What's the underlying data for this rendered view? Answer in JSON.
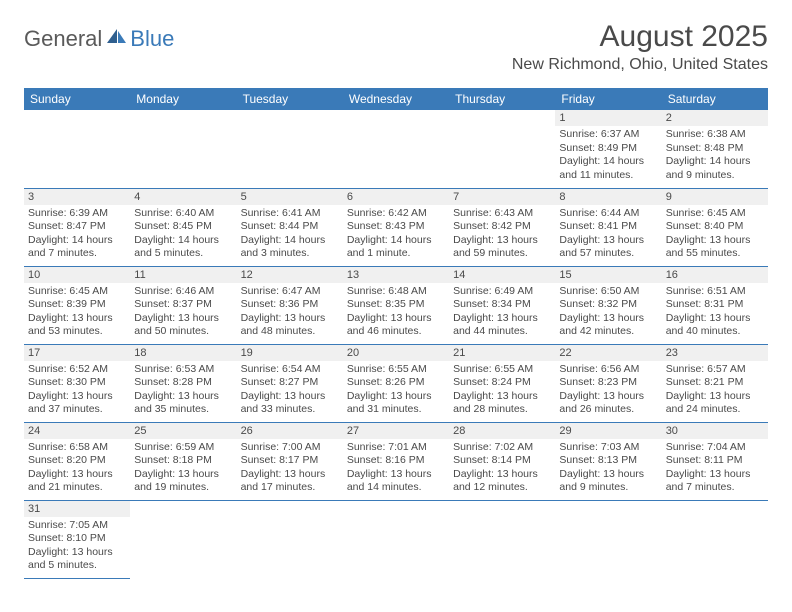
{
  "logo": {
    "text1": "General",
    "text2": "Blue"
  },
  "title": "August 2025",
  "location": "New Richmond, Ohio, United States",
  "colors": {
    "header_bg": "#3a7ab8",
    "header_text": "#ffffff",
    "text": "#4a4a4a",
    "daynum_bg": "#f0f0f0",
    "border": "#3a7ab8",
    "logo_blue": "#3a7ab8"
  },
  "weekdays": [
    "Sunday",
    "Monday",
    "Tuesday",
    "Wednesday",
    "Thursday",
    "Friday",
    "Saturday"
  ],
  "weeks": [
    [
      null,
      null,
      null,
      null,
      null,
      {
        "n": "1",
        "sr": "Sunrise: 6:37 AM",
        "ss": "Sunset: 8:49 PM",
        "dl1": "Daylight: 14 hours",
        "dl2": "and 11 minutes."
      },
      {
        "n": "2",
        "sr": "Sunrise: 6:38 AM",
        "ss": "Sunset: 8:48 PM",
        "dl1": "Daylight: 14 hours",
        "dl2": "and 9 minutes."
      }
    ],
    [
      {
        "n": "3",
        "sr": "Sunrise: 6:39 AM",
        "ss": "Sunset: 8:47 PM",
        "dl1": "Daylight: 14 hours",
        "dl2": "and 7 minutes."
      },
      {
        "n": "4",
        "sr": "Sunrise: 6:40 AM",
        "ss": "Sunset: 8:45 PM",
        "dl1": "Daylight: 14 hours",
        "dl2": "and 5 minutes."
      },
      {
        "n": "5",
        "sr": "Sunrise: 6:41 AM",
        "ss": "Sunset: 8:44 PM",
        "dl1": "Daylight: 14 hours",
        "dl2": "and 3 minutes."
      },
      {
        "n": "6",
        "sr": "Sunrise: 6:42 AM",
        "ss": "Sunset: 8:43 PM",
        "dl1": "Daylight: 14 hours",
        "dl2": "and 1 minute."
      },
      {
        "n": "7",
        "sr": "Sunrise: 6:43 AM",
        "ss": "Sunset: 8:42 PM",
        "dl1": "Daylight: 13 hours",
        "dl2": "and 59 minutes."
      },
      {
        "n": "8",
        "sr": "Sunrise: 6:44 AM",
        "ss": "Sunset: 8:41 PM",
        "dl1": "Daylight: 13 hours",
        "dl2": "and 57 minutes."
      },
      {
        "n": "9",
        "sr": "Sunrise: 6:45 AM",
        "ss": "Sunset: 8:40 PM",
        "dl1": "Daylight: 13 hours",
        "dl2": "and 55 minutes."
      }
    ],
    [
      {
        "n": "10",
        "sr": "Sunrise: 6:45 AM",
        "ss": "Sunset: 8:39 PM",
        "dl1": "Daylight: 13 hours",
        "dl2": "and 53 minutes."
      },
      {
        "n": "11",
        "sr": "Sunrise: 6:46 AM",
        "ss": "Sunset: 8:37 PM",
        "dl1": "Daylight: 13 hours",
        "dl2": "and 50 minutes."
      },
      {
        "n": "12",
        "sr": "Sunrise: 6:47 AM",
        "ss": "Sunset: 8:36 PM",
        "dl1": "Daylight: 13 hours",
        "dl2": "and 48 minutes."
      },
      {
        "n": "13",
        "sr": "Sunrise: 6:48 AM",
        "ss": "Sunset: 8:35 PM",
        "dl1": "Daylight: 13 hours",
        "dl2": "and 46 minutes."
      },
      {
        "n": "14",
        "sr": "Sunrise: 6:49 AM",
        "ss": "Sunset: 8:34 PM",
        "dl1": "Daylight: 13 hours",
        "dl2": "and 44 minutes."
      },
      {
        "n": "15",
        "sr": "Sunrise: 6:50 AM",
        "ss": "Sunset: 8:32 PM",
        "dl1": "Daylight: 13 hours",
        "dl2": "and 42 minutes."
      },
      {
        "n": "16",
        "sr": "Sunrise: 6:51 AM",
        "ss": "Sunset: 8:31 PM",
        "dl1": "Daylight: 13 hours",
        "dl2": "and 40 minutes."
      }
    ],
    [
      {
        "n": "17",
        "sr": "Sunrise: 6:52 AM",
        "ss": "Sunset: 8:30 PM",
        "dl1": "Daylight: 13 hours",
        "dl2": "and 37 minutes."
      },
      {
        "n": "18",
        "sr": "Sunrise: 6:53 AM",
        "ss": "Sunset: 8:28 PM",
        "dl1": "Daylight: 13 hours",
        "dl2": "and 35 minutes."
      },
      {
        "n": "19",
        "sr": "Sunrise: 6:54 AM",
        "ss": "Sunset: 8:27 PM",
        "dl1": "Daylight: 13 hours",
        "dl2": "and 33 minutes."
      },
      {
        "n": "20",
        "sr": "Sunrise: 6:55 AM",
        "ss": "Sunset: 8:26 PM",
        "dl1": "Daylight: 13 hours",
        "dl2": "and 31 minutes."
      },
      {
        "n": "21",
        "sr": "Sunrise: 6:55 AM",
        "ss": "Sunset: 8:24 PM",
        "dl1": "Daylight: 13 hours",
        "dl2": "and 28 minutes."
      },
      {
        "n": "22",
        "sr": "Sunrise: 6:56 AM",
        "ss": "Sunset: 8:23 PM",
        "dl1": "Daylight: 13 hours",
        "dl2": "and 26 minutes."
      },
      {
        "n": "23",
        "sr": "Sunrise: 6:57 AM",
        "ss": "Sunset: 8:21 PM",
        "dl1": "Daylight: 13 hours",
        "dl2": "and 24 minutes."
      }
    ],
    [
      {
        "n": "24",
        "sr": "Sunrise: 6:58 AM",
        "ss": "Sunset: 8:20 PM",
        "dl1": "Daylight: 13 hours",
        "dl2": "and 21 minutes."
      },
      {
        "n": "25",
        "sr": "Sunrise: 6:59 AM",
        "ss": "Sunset: 8:18 PM",
        "dl1": "Daylight: 13 hours",
        "dl2": "and 19 minutes."
      },
      {
        "n": "26",
        "sr": "Sunrise: 7:00 AM",
        "ss": "Sunset: 8:17 PM",
        "dl1": "Daylight: 13 hours",
        "dl2": "and 17 minutes."
      },
      {
        "n": "27",
        "sr": "Sunrise: 7:01 AM",
        "ss": "Sunset: 8:16 PM",
        "dl1": "Daylight: 13 hours",
        "dl2": "and 14 minutes."
      },
      {
        "n": "28",
        "sr": "Sunrise: 7:02 AM",
        "ss": "Sunset: 8:14 PM",
        "dl1": "Daylight: 13 hours",
        "dl2": "and 12 minutes."
      },
      {
        "n": "29",
        "sr": "Sunrise: 7:03 AM",
        "ss": "Sunset: 8:13 PM",
        "dl1": "Daylight: 13 hours",
        "dl2": "and 9 minutes."
      },
      {
        "n": "30",
        "sr": "Sunrise: 7:04 AM",
        "ss": "Sunset: 8:11 PM",
        "dl1": "Daylight: 13 hours",
        "dl2": "and 7 minutes."
      }
    ],
    [
      {
        "n": "31",
        "sr": "Sunrise: 7:05 AM",
        "ss": "Sunset: 8:10 PM",
        "dl1": "Daylight: 13 hours",
        "dl2": "and 5 minutes."
      },
      null,
      null,
      null,
      null,
      null,
      null
    ]
  ]
}
